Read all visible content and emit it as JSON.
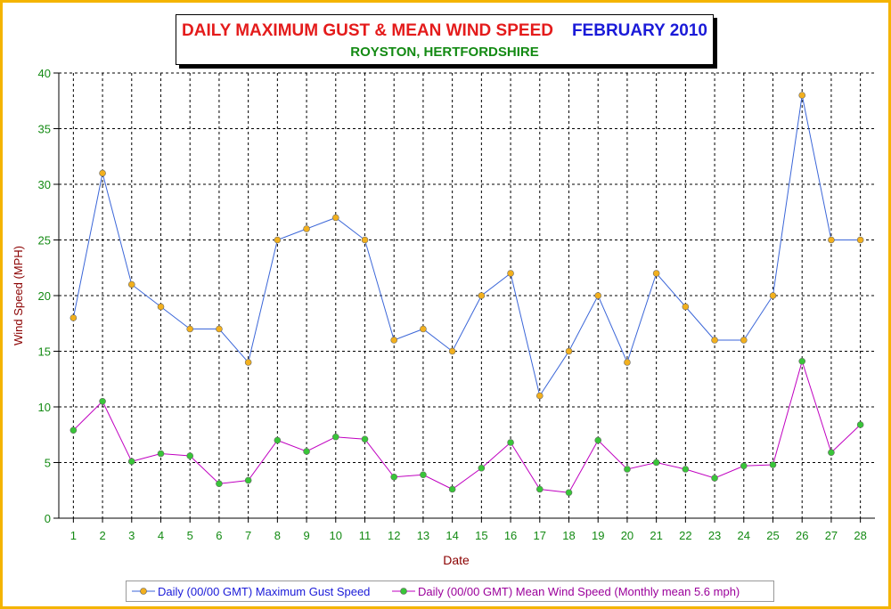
{
  "title": {
    "main": "DAILY MAXIMUM GUST & MEAN WIND SPEED",
    "date": "FEBRUARY 2010",
    "subtitle": "ROYSTON, HERTFORDSHIRE"
  },
  "colors": {
    "frame": "#f4b400",
    "title_main": "#e41b1b",
    "title_date": "#1a1ad8",
    "subtitle": "#138a13",
    "axis_label": "#8b0000",
    "tick_label": "#138a13",
    "gust_line": "#3b66d8",
    "gust_marker": "#f2b01e",
    "mean_line": "#c000c0",
    "mean_marker": "#39c539",
    "grid": "#000000"
  },
  "chart_data": {
    "type": "line",
    "xlabel": "Date",
    "ylabel": "Wind Speed (MPH)",
    "ylim": [
      0,
      40
    ],
    "yticks": [
      0,
      5,
      10,
      15,
      20,
      25,
      30,
      35,
      40
    ],
    "grid": true,
    "legend_position": "bottom",
    "categories": [
      1,
      2,
      3,
      4,
      5,
      6,
      7,
      8,
      9,
      10,
      11,
      12,
      13,
      14,
      15,
      16,
      17,
      18,
      19,
      20,
      21,
      22,
      23,
      24,
      25,
      26,
      27,
      28
    ],
    "series": [
      {
        "name": "Daily (00/00 GMT) Maximum Gust Speed",
        "values": [
          18,
          31,
          21,
          19,
          17,
          17,
          14,
          25,
          26,
          27,
          25,
          16,
          17,
          15,
          20,
          22,
          11,
          15,
          20,
          14,
          22,
          19,
          16,
          16,
          20,
          38,
          25,
          25
        ]
      },
      {
        "name": "Daily (00/00 GMT) Mean Wind Speed (Monthly mean 5.6 mph)",
        "values": [
          7.9,
          10.5,
          5.1,
          5.8,
          5.6,
          3.1,
          3.4,
          7.0,
          6.0,
          7.3,
          7.1,
          3.7,
          3.9,
          2.6,
          4.5,
          6.8,
          2.6,
          2.3,
          7.0,
          4.4,
          5.0,
          4.4,
          3.6,
          4.7,
          4.8,
          14.1,
          5.9,
          8.4
        ]
      }
    ]
  }
}
